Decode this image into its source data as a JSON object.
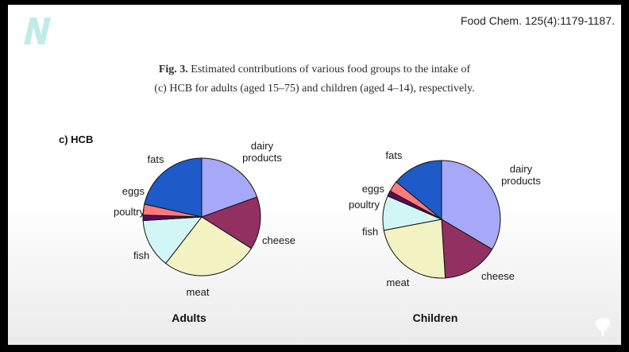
{
  "header": {
    "citation": "Food Chem. 125(4):1179-1187."
  },
  "caption": {
    "fig_label": "Fig. 3.",
    "line1_text": " Estimated contributions of various food groups to the intake of",
    "line2_text": "(c) HCB for adults (aged 15–75) and children (aged 4–14), respectively."
  },
  "panel_label": "c) HCB",
  "colors": {
    "dairy": "#a8a8f8",
    "cheese": "#923062",
    "meat": "#f2f2c2",
    "fish": "#d2f6f6",
    "poultry": "#5e0a5e",
    "eggs": "#fb7b7b",
    "fats": "#1f5bc8"
  },
  "chart_data": [
    {
      "type": "pie",
      "title": "Adults",
      "labels": [
        "dairy products",
        "cheese",
        "meat",
        "fish",
        "poultry",
        "eggs",
        "fats"
      ],
      "values": [
        19.5,
        14.5,
        26.5,
        13.5,
        1.5,
        3,
        21.5
      ]
    },
    {
      "type": "pie",
      "title": "Children",
      "labels": [
        "dairy products",
        "cheese",
        "meat",
        "fish",
        "poultry",
        "eggs",
        "fats"
      ],
      "values": [
        33.5,
        15.5,
        23,
        9.5,
        1.5,
        3,
        14
      ]
    }
  ]
}
